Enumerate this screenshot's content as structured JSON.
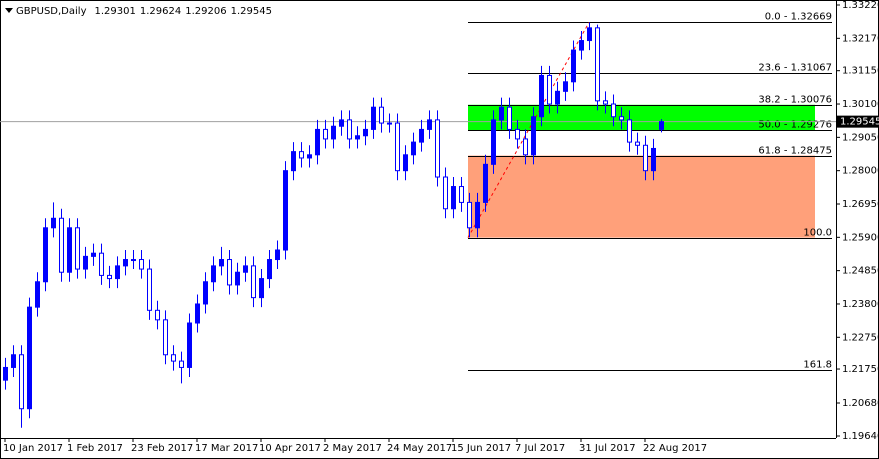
{
  "chart_data": {
    "type": "candlestick",
    "title": "GBPUSD,Daily",
    "categories": [
      "10 Jan 2017",
      null,
      null,
      null,
      null,
      null,
      null,
      null,
      "1 Feb 2017",
      null,
      null,
      null,
      null,
      null,
      null,
      null,
      "23 Feb 2017",
      null,
      null,
      null,
      null,
      null,
      null,
      null,
      "17 Mar 2017",
      null,
      null,
      null,
      null,
      null,
      null,
      null,
      "10 Apr 2017",
      null,
      null,
      null,
      null,
      null,
      null,
      null,
      "2 May 2017",
      null,
      null,
      null,
      null,
      null,
      null,
      null,
      "24 May 2017",
      null,
      null,
      null,
      null,
      null,
      null,
      null,
      "15 Jun 2017",
      null,
      null,
      null,
      null,
      null,
      null,
      null,
      "7 Jul 2017",
      null,
      null,
      null,
      null,
      null,
      null,
      null,
      "31 Jul 2017",
      null,
      null,
      null,
      null,
      null,
      null,
      null,
      "22 Aug 2017",
      null,
      null
    ],
    "open": [
      1.214,
      1.218,
      1.222,
      1.205,
      1.237,
      1.245,
      1.262,
      1.265,
      1.248,
      1.262,
      1.249,
      1.253,
      1.254,
      1.247,
      1.246,
      1.25,
      1.252,
      1.252,
      1.249,
      1.236,
      1.233,
      1.222,
      1.22,
      1.218,
      1.232,
      1.238,
      1.245,
      1.25,
      1.252,
      1.244,
      1.248,
      1.25,
      1.24,
      1.246,
      1.252,
      1.255,
      1.28,
      1.286,
      1.284,
      1.285,
      1.293,
      1.29,
      1.294,
      1.296,
      1.29,
      1.291,
      1.293,
      1.3,
      1.295,
      1.295,
      1.28,
      1.285,
      1.289,
      1.293,
      1.296,
      1.278,
      1.268,
      1.275,
      1.27,
      1.262,
      1.27,
      1.282,
      1.296,
      1.3,
      1.293,
      1.29,
      1.285,
      1.297,
      1.31,
      1.301,
      1.305,
      1.308,
      1.318,
      1.321,
      1.325,
      1.302,
      1.301,
      1.297,
      1.296,
      1.289,
      1.288,
      1.28,
      1.29301
    ],
    "high": [
      1.221,
      1.225,
      1.225,
      1.24,
      1.248,
      1.265,
      1.27,
      1.268,
      1.265,
      1.265,
      1.256,
      1.257,
      1.257,
      1.25,
      1.253,
      1.255,
      1.255,
      1.255,
      1.252,
      1.239,
      1.236,
      1.225,
      1.223,
      1.235,
      1.241,
      1.248,
      1.253,
      1.256,
      1.255,
      1.251,
      1.253,
      1.253,
      1.249,
      1.255,
      1.258,
      1.283,
      1.289,
      1.289,
      1.288,
      1.296,
      1.296,
      1.297,
      1.299,
      1.299,
      1.294,
      1.296,
      1.303,
      1.303,
      1.298,
      1.298,
      1.288,
      1.292,
      1.296,
      1.299,
      1.299,
      1.281,
      1.278,
      1.278,
      1.273,
      1.273,
      1.285,
      1.299,
      1.303,
      1.303,
      1.296,
      1.293,
      1.3,
      1.313,
      1.313,
      1.308,
      1.311,
      1.321,
      1.324,
      1.3267,
      1.326,
      1.305,
      1.304,
      1.3,
      1.299,
      1.292,
      1.291,
      1.29,
      1.29624
    ],
    "low": [
      1.211,
      1.215,
      1.199,
      1.202,
      1.234,
      1.242,
      1.259,
      1.245,
      1.245,
      1.246,
      1.246,
      1.25,
      1.244,
      1.243,
      1.243,
      1.247,
      1.249,
      1.246,
      1.233,
      1.23,
      1.219,
      1.217,
      1.213,
      1.215,
      1.229,
      1.235,
      1.242,
      1.247,
      1.241,
      1.241,
      1.245,
      1.237,
      1.237,
      1.243,
      1.249,
      1.252,
      1.277,
      1.281,
      1.281,
      1.282,
      1.287,
      1.287,
      1.291,
      1.287,
      1.287,
      1.288,
      1.29,
      1.292,
      1.292,
      1.277,
      1.277,
      1.282,
      1.286,
      1.29,
      1.275,
      1.265,
      1.265,
      1.267,
      1.259,
      1.259,
      1.267,
      1.279,
      1.293,
      1.29,
      1.287,
      1.282,
      1.282,
      1.294,
      1.298,
      1.298,
      1.302,
      1.305,
      1.315,
      1.318,
      1.299,
      1.298,
      1.294,
      1.293,
      1.286,
      1.285,
      1.277,
      1.277,
      1.29206
    ],
    "close": [
      1.218,
      1.222,
      1.205,
      1.237,
      1.245,
      1.262,
      1.265,
      1.248,
      1.262,
      1.249,
      1.253,
      1.254,
      1.247,
      1.246,
      1.25,
      1.252,
      1.252,
      1.249,
      1.236,
      1.233,
      1.222,
      1.22,
      1.218,
      1.232,
      1.238,
      1.245,
      1.25,
      1.252,
      1.244,
      1.248,
      1.25,
      1.24,
      1.246,
      1.252,
      1.255,
      1.28,
      1.286,
      1.284,
      1.285,
      1.293,
      1.29,
      1.294,
      1.296,
      1.29,
      1.291,
      1.293,
      1.3,
      1.295,
      1.295,
      1.28,
      1.285,
      1.289,
      1.293,
      1.296,
      1.278,
      1.268,
      1.275,
      1.27,
      1.262,
      1.27,
      1.282,
      1.296,
      1.3,
      1.293,
      1.29,
      1.285,
      1.297,
      1.31,
      1.301,
      1.305,
      1.308,
      1.318,
      1.321,
      1.325,
      1.302,
      1.301,
      1.297,
      1.296,
      1.289,
      1.288,
      1.28,
      1.287,
      1.29545
    ],
    "up_color": "#0000ff",
    "down_color": "#ffffff",
    "ylim": [
      1.1964,
      1.3322
    ],
    "yticks": [
      {
        "value": 1.3322,
        "label": "1.33220"
      },
      {
        "value": 1.3217,
        "label": "1.32170"
      },
      {
        "value": 1.3115,
        "label": "1.31150"
      },
      {
        "value": 1.301,
        "label": "1.30100"
      },
      {
        "value": 1.2905,
        "label": "1.29050"
      },
      {
        "value": 1.28,
        "label": "1.28000"
      },
      {
        "value": 1.2695,
        "label": "1.26950"
      },
      {
        "value": 1.259,
        "label": "1.25900"
      },
      {
        "value": 1.2485,
        "label": "1.24850"
      },
      {
        "value": 1.238,
        "label": "1.23800"
      },
      {
        "value": 1.2275,
        "label": "1.22750"
      },
      {
        "value": 1.2175,
        "label": "1.21750"
      },
      {
        "value": 1.2068,
        "label": "1.20680"
      },
      {
        "value": 1.1964,
        "label": "1.19640"
      }
    ],
    "grid": false,
    "fibo": {
      "levels": [
        {
          "label": "0.0 - 1.32669",
          "value": 1.32669
        },
        {
          "label": "23.6 - 1.31067",
          "value": 1.31067
        },
        {
          "label": "38.2 - 1.30076",
          "value": 1.30076
        },
        {
          "label": "50.0 - 1.29276",
          "value": 1.29276
        },
        {
          "label": "61.8 - 1.28475",
          "value": 1.28475
        },
        {
          "label": "100.0",
          "value": 1.2589
        },
        {
          "label": "161.8",
          "value": 1.2173
        }
      ],
      "upper_zone_color": "#00ff00",
      "lower_zone_color": "#ffa07a"
    }
  }
}
